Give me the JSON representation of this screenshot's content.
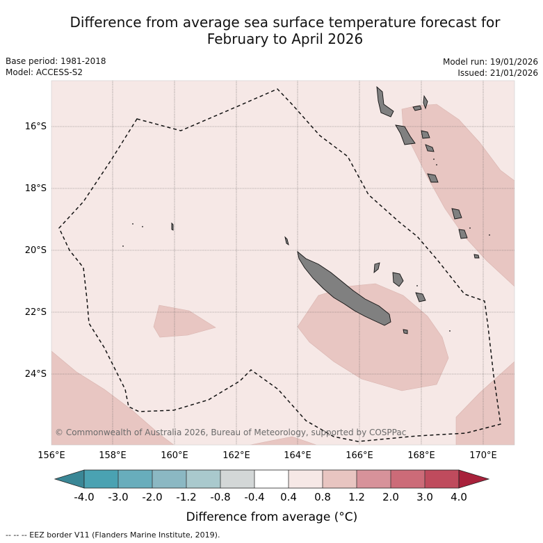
{
  "title_line1": "Difference from average sea surface temperature forecast for",
  "title_line2": "February to April 2026",
  "base_period": "Base period: 1981-2018",
  "model": "Model: ACCESS-S2",
  "model_run": "Model run: 19/01/2026",
  "issued": "Issued: 21/01/2026",
  "copyright": "© Commonwealth of Australia 2026, Bureau of Meteorology, supported by COSPPac",
  "x_ticks": [
    "156°E",
    "158°E",
    "160°E",
    "162°E",
    "164°E",
    "166°E",
    "168°E",
    "170°E"
  ],
  "y_ticks": [
    "16°S",
    "18°S",
    "20°S",
    "22°S",
    "24°S"
  ],
  "colorbar": {
    "ticks": [
      "-4.0",
      "-3.0",
      "-2.0",
      "-1.2",
      "-0.8",
      "-0.4",
      "0.4",
      "0.8",
      "1.2",
      "2.0",
      "3.0",
      "4.0"
    ],
    "colors": [
      "#4aa2b2",
      "#68adbc",
      "#8bb8c3",
      "#a9c9cd",
      "#d3d7d7",
      "#ffffff",
      "#f6e8e6",
      "#e8c5c1",
      "#d7929a",
      "#cc6b78",
      "#bf4b5d"
    ],
    "low_extend_color": "#3a8796",
    "high_extend_color": "#a8213b",
    "label": "Difference from average (°C)"
  },
  "colors": {
    "ocean_base": "#f6e8e6",
    "warm_anomaly": "#e8c6c2",
    "land": "#808080"
  },
  "legend_note": "-- -- -- EEZ border V11 (Flanders Marine Institute, 2019)."
}
